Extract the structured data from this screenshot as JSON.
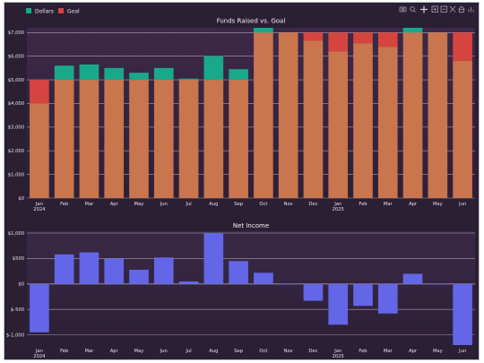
{
  "legend": {
    "dollars_label": "Dollars",
    "goal_label": "Goal"
  },
  "colors": {
    "background": "#2a1f33",
    "plot_top": "#3a2747",
    "dollars": "#1aa88a",
    "goal": "#d6443f",
    "bar_base": "#c9754e",
    "net_income": "#6366e6",
    "grid": "#d9d4dd"
  },
  "modebar": {
    "icons": [
      "camera-icon",
      "zoom-icon",
      "pan-icon",
      "zoom-in-icon",
      "zoom-out-icon",
      "autoscale-icon",
      "home-icon",
      "logo-icon"
    ]
  },
  "chart_data": [
    {
      "type": "bar",
      "title": "Funds Raised vs. Goal",
      "categories": [
        "Jan\n2024",
        "Feb",
        "Mar",
        "Apr",
        "May",
        "Jun",
        "Jul",
        "Aug",
        "Sep",
        "Oct",
        "Nov",
        "Dec",
        "Jan\n2025",
        "Feb",
        "Mar",
        "Apr",
        "May",
        "Jun"
      ],
      "x_tick_labels": [
        [
          "Jan",
          "2024"
        ],
        [
          "Feb"
        ],
        [
          "Mar"
        ],
        [
          "Apr"
        ],
        [
          "May"
        ],
        [
          "Jun"
        ],
        [
          "Jul"
        ],
        [
          "Aug"
        ],
        [
          "Sep"
        ],
        [
          "Oct"
        ],
        [
          "Nov"
        ],
        [
          "Dec"
        ],
        [
          "Jan",
          "2025"
        ],
        [
          "Feb"
        ],
        [
          "Mar"
        ],
        [
          "Apr"
        ],
        [
          "May"
        ],
        [
          "Jun"
        ]
      ],
      "series": [
        {
          "name": "Dollars",
          "values": [
            4000,
            5600,
            5650,
            5500,
            5300,
            5500,
            5050,
            6000,
            5450,
            7200,
            7000,
            6650,
            6200,
            6550,
            6400,
            7200,
            7000,
            5800
          ]
        },
        {
          "name": "Goal",
          "values": [
            5000,
            5000,
            5000,
            5000,
            5000,
            5000,
            5000,
            5000,
            5000,
            7000,
            7000,
            7000,
            7000,
            7000,
            7000,
            7000,
            7000,
            7000
          ]
        }
      ],
      "ylim": [
        0,
        7200
      ],
      "y_tick_values": [
        0,
        1000,
        2000,
        3000,
        4000,
        5000,
        6000,
        7000
      ],
      "y_tick_labels": [
        "$0",
        "$1,000",
        "$2,000",
        "$3,000",
        "$4,000",
        "$5,000",
        "$6,000",
        "$7,000"
      ],
      "grid": true,
      "legend": "top-left"
    },
    {
      "type": "bar",
      "title": "Net Income",
      "categories": [
        "Jan\n2024",
        "Feb",
        "Mar",
        "Apr",
        "May",
        "Jun",
        "Jul",
        "Aug",
        "Sep",
        "Oct",
        "Nov",
        "Dec",
        "Jan\n2025",
        "Feb",
        "Mar",
        "Apr",
        "May",
        "Jun"
      ],
      "x_tick_labels": [
        [
          "Jan",
          "2024"
        ],
        [
          "Feb"
        ],
        [
          "Mar"
        ],
        [
          "Apr"
        ],
        [
          "May"
        ],
        [
          "Jun"
        ],
        [
          "Jul"
        ],
        [
          "Aug"
        ],
        [
          "Sep"
        ],
        [
          "Oct"
        ],
        [
          "Nov"
        ],
        [
          "Dec"
        ],
        [
          "Jan",
          "2025"
        ],
        [
          "Feb"
        ],
        [
          "Mar"
        ],
        [
          "Apr"
        ],
        [
          "May"
        ],
        [
          "Jun"
        ]
      ],
      "values": [
        -950,
        580,
        620,
        500,
        280,
        520,
        50,
        1000,
        450,
        220,
        0,
        -330,
        -800,
        -430,
        -580,
        200,
        0,
        -1200
      ],
      "ylim": [
        -1200,
        1000
      ],
      "y_tick_values": [
        1000,
        500,
        0,
        -500,
        -1000
      ],
      "y_tick_labels": [
        "$1,000",
        "$500",
        "$0",
        "$-500",
        "$-1,000"
      ],
      "grid": true
    }
  ]
}
